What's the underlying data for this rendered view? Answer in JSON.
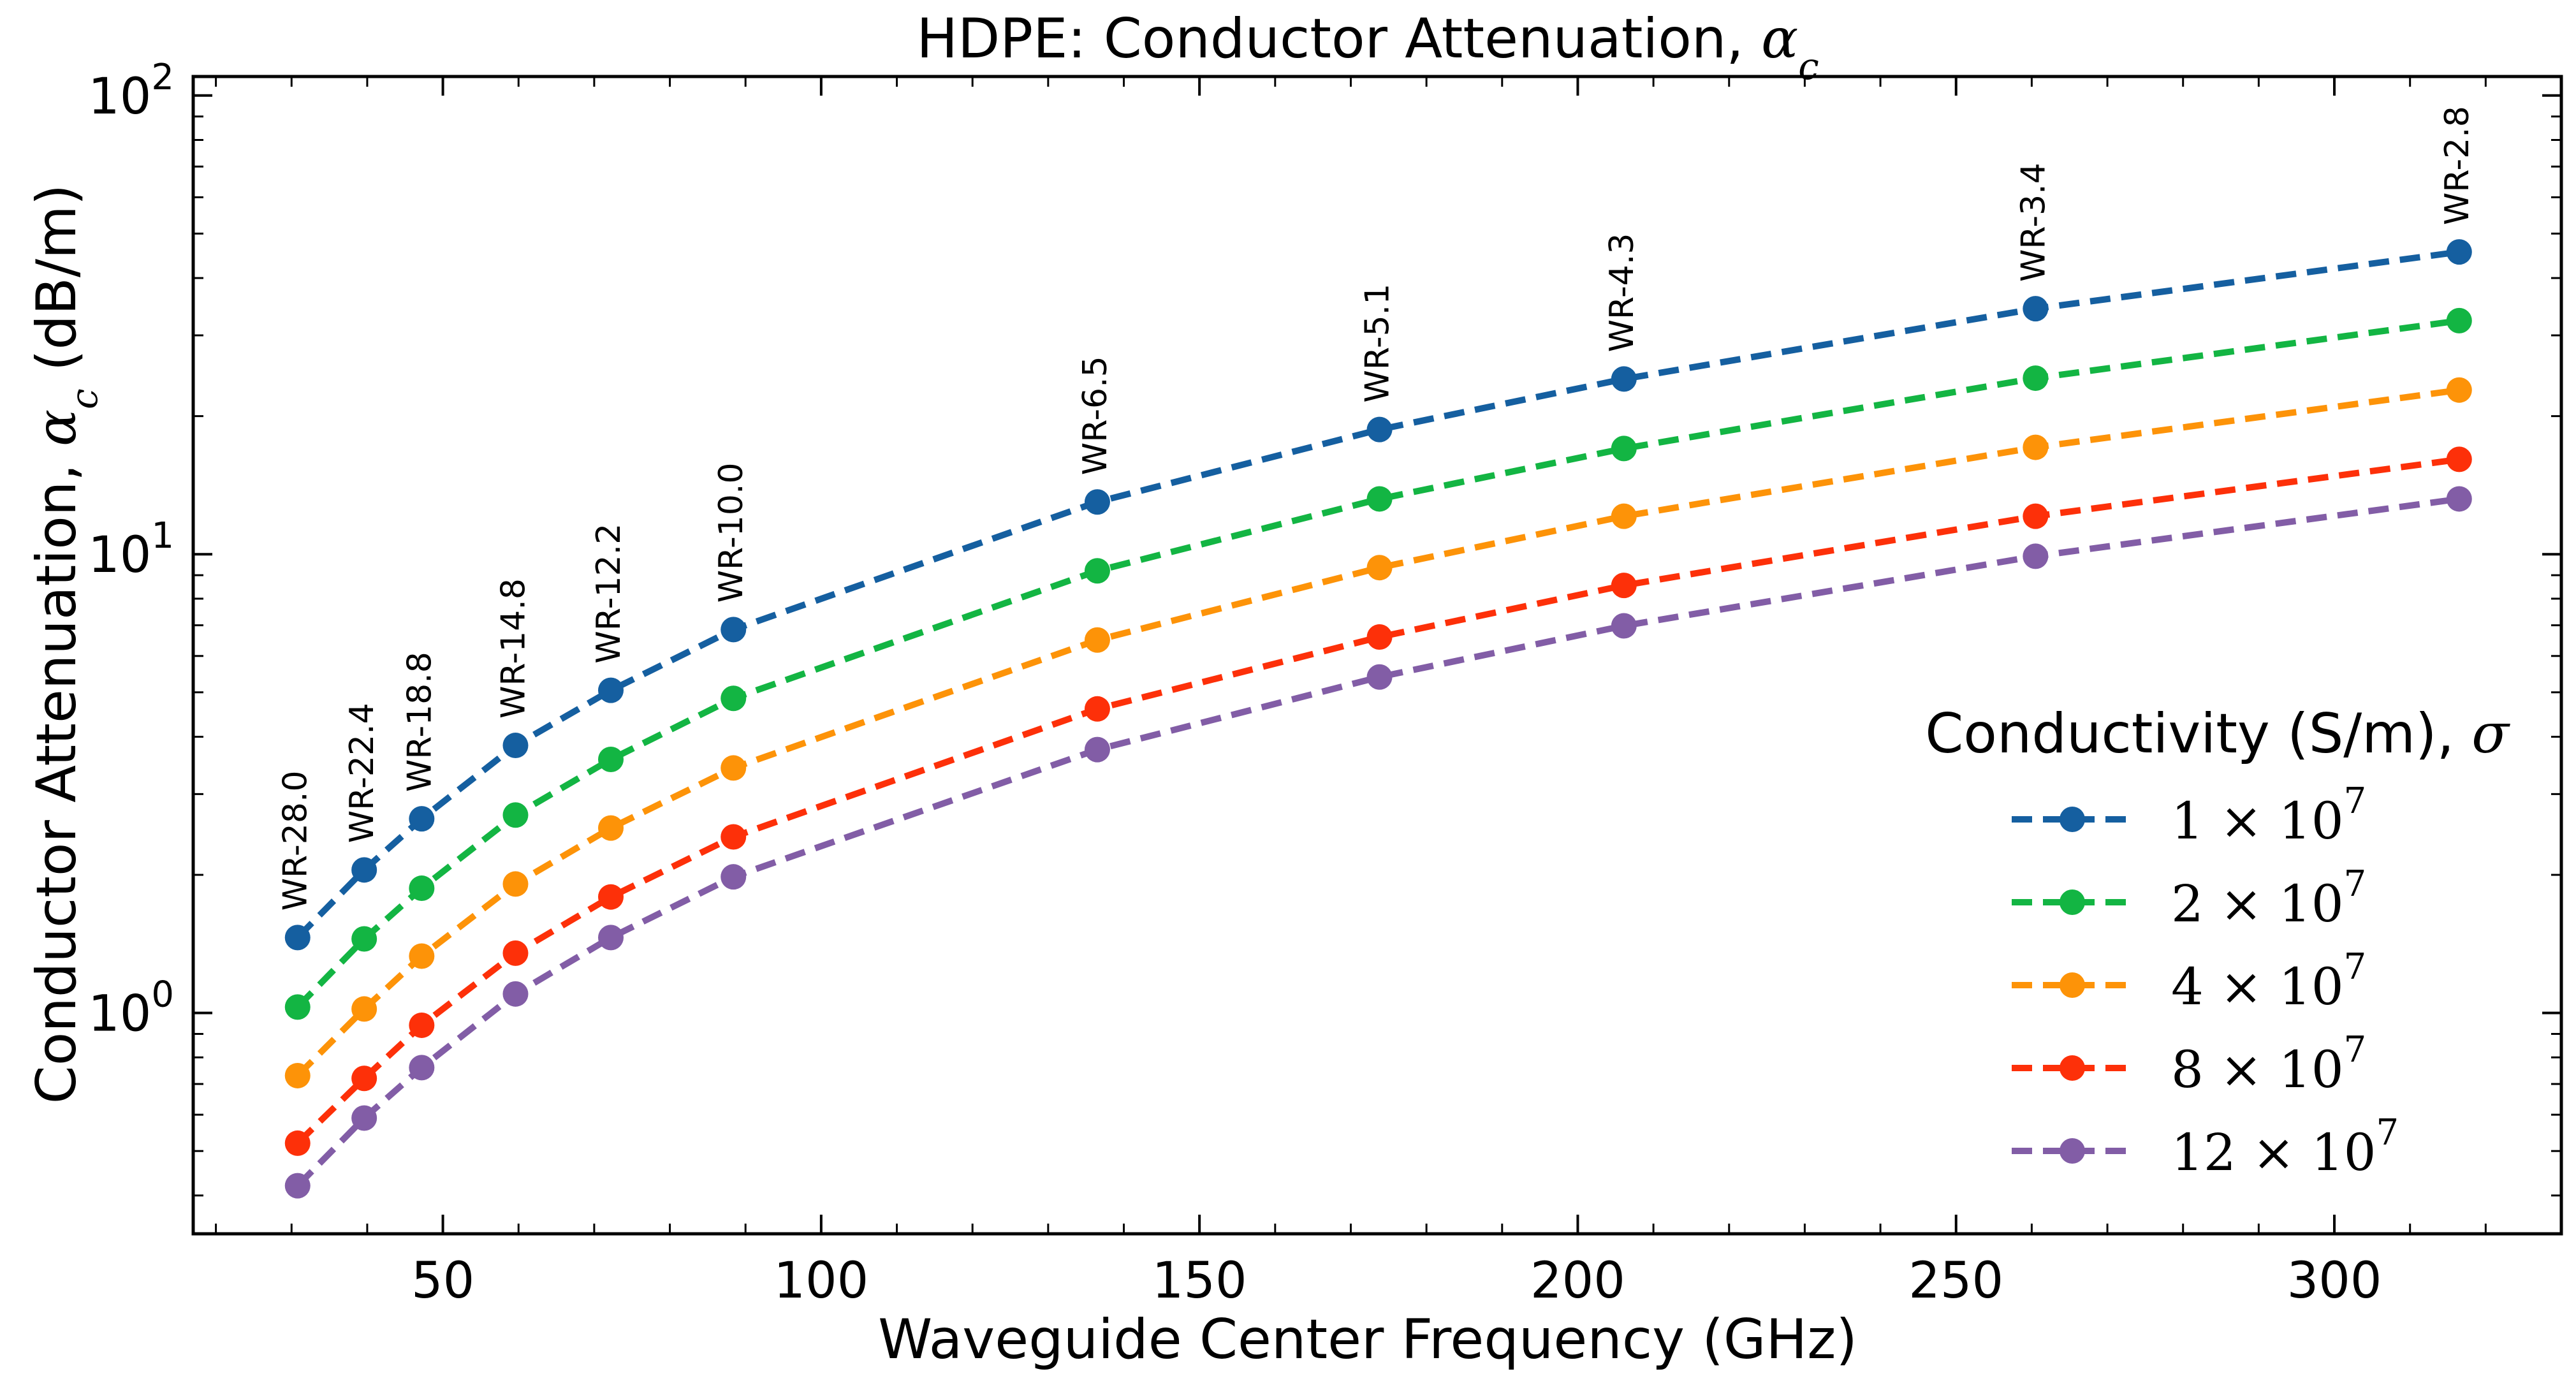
{
  "chart_data": {
    "type": "line",
    "title": "HDPE: Conductor Attenuation, ",
    "title_symbol": "α",
    "title_subscript": "c",
    "xlabel": "Waveguide Center Frequency (GHz)",
    "ylabel": "Conductor Attenuation, ",
    "ylabel_symbol": "α",
    "ylabel_subscript": "c",
    "ylabel_unit": " (dB/m)",
    "x_scale": "linear",
    "y_scale": "log",
    "xlim": [
      17,
      330
    ],
    "ylim": [
      0.33,
      110
    ],
    "x_ticks": [
      50,
      100,
      150,
      200,
      250,
      300
    ],
    "x_tick_labels": [
      "50",
      "100",
      "150",
      "200",
      "250",
      "300"
    ],
    "y_ticks": [
      1,
      10,
      100
    ],
    "y_tick_base": "10",
    "y_tick_exponents": [
      "0",
      "1",
      "2"
    ],
    "grid": false,
    "legend_placement": "lower-right",
    "legend_title": "Conductivity (S/m), ",
    "legend_title_symbol": "σ",
    "x": [
      30.8,
      39.6,
      47.2,
      59.6,
      72.2,
      88.4,
      136.5,
      173.8,
      206.1,
      260.5,
      316.5
    ],
    "point_labels": [
      "WR-28.0",
      "WR-22.4",
      "WR-18.8",
      "WR-14.8",
      "WR-12.2",
      "WR-10.0",
      "WR-6.5",
      "WR-5.1",
      "WR-4.3",
      "WR-3.4",
      "WR-2.8"
    ],
    "series": [
      {
        "name": "1 × 10",
        "exponent": "7",
        "color": "#155fa0",
        "values": [
          1.46,
          2.05,
          2.65,
          3.83,
          5.05,
          6.85,
          13.0,
          18.7,
          24.1,
          34.3,
          45.6
        ]
      },
      {
        "name": "2 × 10",
        "exponent": "7",
        "color": "#13b543",
        "values": [
          1.03,
          1.45,
          1.87,
          2.7,
          3.57,
          4.85,
          9.2,
          13.2,
          17.0,
          24.2,
          32.3
        ]
      },
      {
        "name": "4 × 10",
        "exponent": "7",
        "color": "#fd9308",
        "values": [
          0.73,
          1.02,
          1.33,
          1.91,
          2.53,
          3.42,
          6.5,
          9.35,
          12.1,
          17.1,
          22.8
        ]
      },
      {
        "name": "8 × 10",
        "exponent": "7",
        "color": "#fd3009",
        "values": [
          0.52,
          0.72,
          0.94,
          1.35,
          1.79,
          2.42,
          4.6,
          6.6,
          8.55,
          12.1,
          16.1
        ]
      },
      {
        "name": "12 × 10",
        "exponent": "7",
        "color": "#825da6",
        "values": [
          0.42,
          0.59,
          0.76,
          1.1,
          1.46,
          1.98,
          3.75,
          5.4,
          6.98,
          9.9,
          13.2
        ]
      }
    ]
  }
}
